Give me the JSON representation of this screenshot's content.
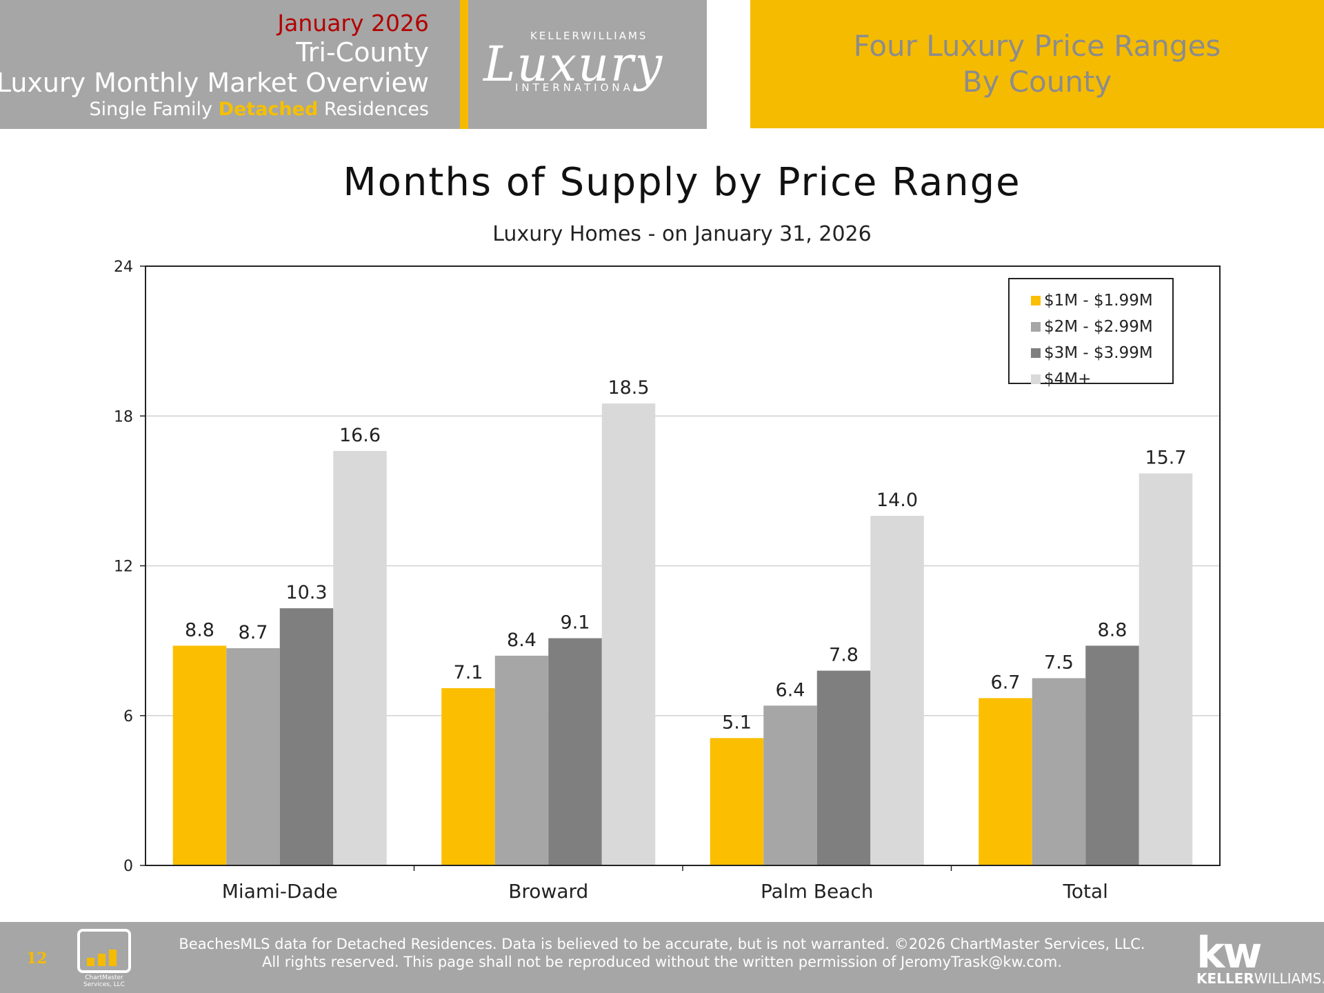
{
  "header": {
    "date": "January 2026",
    "region": "Tri-County",
    "title": "Luxury Monthly Market Overview",
    "sub_prefix": "Single Family ",
    "sub_highlight": "Detached",
    "sub_suffix": " Residences",
    "logo_top": "KELLERWILLIAMS",
    "logo_main": "Luxury",
    "logo_bottom": "INTERNATIONAL",
    "right_line1": "Four Luxury Price Ranges",
    "right_line2": "By County"
  },
  "colors": {
    "accent": "#f5bb00",
    "header_gray": "#a6a6a6",
    "date_red": "#b20000"
  },
  "chart_data": {
    "type": "bar",
    "title": "Months of Supply by Price Range",
    "subtitle": "Luxury Homes - on January 31, 2026",
    "categories": [
      "Miami-Dade",
      "Broward",
      "Palm Beach",
      "Total"
    ],
    "series": [
      {
        "name": "$1M - $1.99M",
        "color": "#fbbe00",
        "values": [
          8.8,
          7.1,
          5.1,
          6.7
        ]
      },
      {
        "name": "$2M - $2.99M",
        "color": "#a6a6a6",
        "values": [
          8.7,
          8.4,
          6.4,
          7.5
        ]
      },
      {
        "name": "$3M - $3.99M",
        "color": "#7f7f7f",
        "values": [
          10.3,
          9.1,
          7.8,
          8.8
        ]
      },
      {
        "name": "$4M+",
        "color": "#d9d9d9",
        "values": [
          16.6,
          18.5,
          14.0,
          15.7
        ]
      }
    ],
    "ylim": [
      0,
      24
    ],
    "yticks": [
      0,
      6,
      12,
      18,
      24
    ],
    "grid": true,
    "legend": "top-right"
  },
  "footer": {
    "page_number": "12",
    "logo_label": "ChartMaster Services, LLC",
    "line1": "BeachesMLS data for Detached Residences.  Data is believed to be accurate, but is not warranted.   ©2026  ChartMaster Services, LLC.",
    "line2": "All rights reserved. This page shall not be reproduced without the written permission of JeromyTrask@kw.com.",
    "kw_mark": "kw",
    "kw_name_bold": "KELLER",
    "kw_name_rest": "WILLIAMS."
  }
}
